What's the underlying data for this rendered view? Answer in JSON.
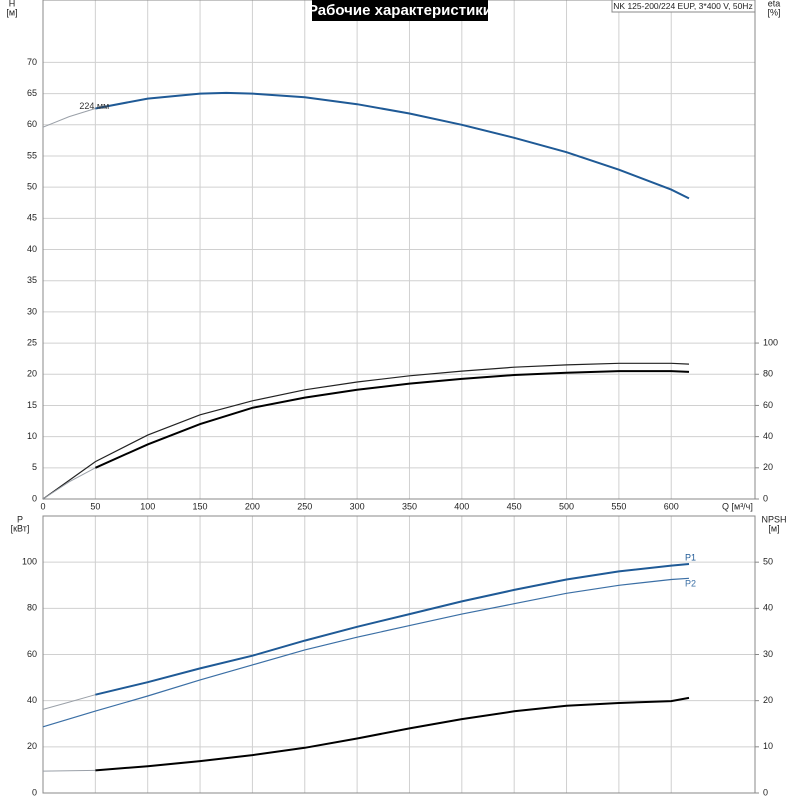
{
  "chart_data": [
    {
      "type": "line",
      "title": "Рабочие характеристики",
      "info": "NK 125-200/224 EUP, 3*400 V, 50Hz",
      "xlabel": "Q [м³/ч]",
      "ylabel": "H",
      "yunit": "[м]",
      "y2label": "eta",
      "y2unit": "[%]",
      "xlim": [
        0,
        680
      ],
      "xticks": [
        0,
        50,
        100,
        150,
        200,
        250,
        300,
        350,
        400,
        450,
        500,
        550,
        600
      ],
      "ylim": [
        0,
        80
      ],
      "yticks": [
        0,
        5,
        10,
        15,
        20,
        25,
        30,
        35,
        40,
        45,
        50,
        55,
        60,
        65,
        70
      ],
      "y2lim": [
        0,
        320
      ],
      "y2ticks": [
        0,
        20,
        40,
        60,
        80,
        100
      ],
      "grid": true,
      "series": [
        {
          "color": "#9aa0a8",
          "width": 1,
          "x": [
            0,
            25,
            50
          ],
          "values": [
            59.6,
            61.3,
            62.6
          ]
        },
        {
          "name": "224 мм",
          "color": "#1f5a96",
          "width": 2,
          "x": [
            50,
            100,
            150,
            175,
            200,
            250,
            300,
            350,
            400,
            450,
            500,
            550,
            600,
            617
          ],
          "values": [
            62.6,
            64.2,
            65.0,
            65.1,
            65.0,
            64.4,
            63.3,
            61.8,
            60.0,
            57.9,
            55.6,
            52.8,
            49.6,
            48.2
          ]
        },
        {
          "axis": "y2",
          "color": "#222222",
          "width": 1.2,
          "x": [
            0,
            50,
            100,
            150,
            200,
            250,
            300,
            350,
            400,
            450,
            500,
            550,
            600,
            617
          ],
          "values": [
            0,
            24,
            41,
            54,
            63,
            70,
            75,
            79,
            82,
            84.5,
            86,
            87,
            87,
            86.5
          ]
        },
        {
          "axis": "y2",
          "color": "#9aa0a8",
          "width": 1,
          "x": [
            0,
            25,
            50
          ],
          "values": [
            0,
            11,
            20
          ]
        },
        {
          "axis": "y2",
          "color": "#000000",
          "width": 2,
          "x": [
            50,
            100,
            150,
            200,
            250,
            300,
            350,
            400,
            450,
            500,
            550,
            600,
            617
          ],
          "values": [
            20,
            35,
            48,
            58.5,
            65,
            70,
            74,
            77,
            79.5,
            81,
            82,
            82,
            81.5
          ]
        }
      ]
    },
    {
      "type": "line",
      "ylabel": "P",
      "yunit": "[кВт]",
      "y2label": "NPSH",
      "y2unit": "[м]",
      "xlim": [
        0,
        680
      ],
      "xticks": [
        0,
        50,
        100,
        150,
        200,
        250,
        300,
        350,
        400,
        450,
        500,
        550,
        600
      ],
      "ylim": [
        0,
        120
      ],
      "yticks": [
        0,
        20,
        40,
        60,
        80,
        100
      ],
      "y2lim": [
        0,
        60
      ],
      "y2ticks": [
        0,
        10,
        20,
        30,
        40,
        50
      ],
      "grid": true,
      "series": [
        {
          "color": "#9aa0a8",
          "width": 1,
          "x": [
            0,
            25,
            50
          ],
          "values": [
            36.2,
            39.4,
            42.6
          ]
        },
        {
          "name": "P1",
          "color": "#1f5a96",
          "width": 2,
          "x": [
            50,
            100,
            150,
            200,
            250,
            300,
            350,
            400,
            450,
            500,
            550,
            600,
            617
          ],
          "values": [
            42.6,
            48,
            54,
            59.5,
            66,
            72,
            77.5,
            83,
            88,
            92.5,
            96,
            98.5,
            99.2
          ]
        },
        {
          "name": "P2",
          "color": "#3b6fa5",
          "width": 1.2,
          "x": [
            0,
            50,
            100,
            150,
            200,
            250,
            300,
            350,
            400,
            450,
            500,
            550,
            600,
            617
          ],
          "values": [
            28.7,
            35.5,
            42,
            49,
            55.5,
            62,
            67.5,
            72.5,
            77.5,
            82,
            86.5,
            90,
            92.5,
            93
          ]
        },
        {
          "axis": "y2",
          "color": "#9aa0a8",
          "width": 1,
          "x": [
            0,
            25,
            50
          ],
          "values": [
            4.75,
            4.8,
            4.9
          ]
        },
        {
          "axis": "y2",
          "color": "#000000",
          "width": 2,
          "x": [
            50,
            100,
            150,
            200,
            250,
            300,
            350,
            400,
            450,
            500,
            550,
            600,
            617
          ],
          "values": [
            4.9,
            5.8,
            6.9,
            8.2,
            9.8,
            11.8,
            14,
            16,
            17.7,
            18.9,
            19.5,
            19.9,
            20.6
          ]
        }
      ]
    }
  ]
}
